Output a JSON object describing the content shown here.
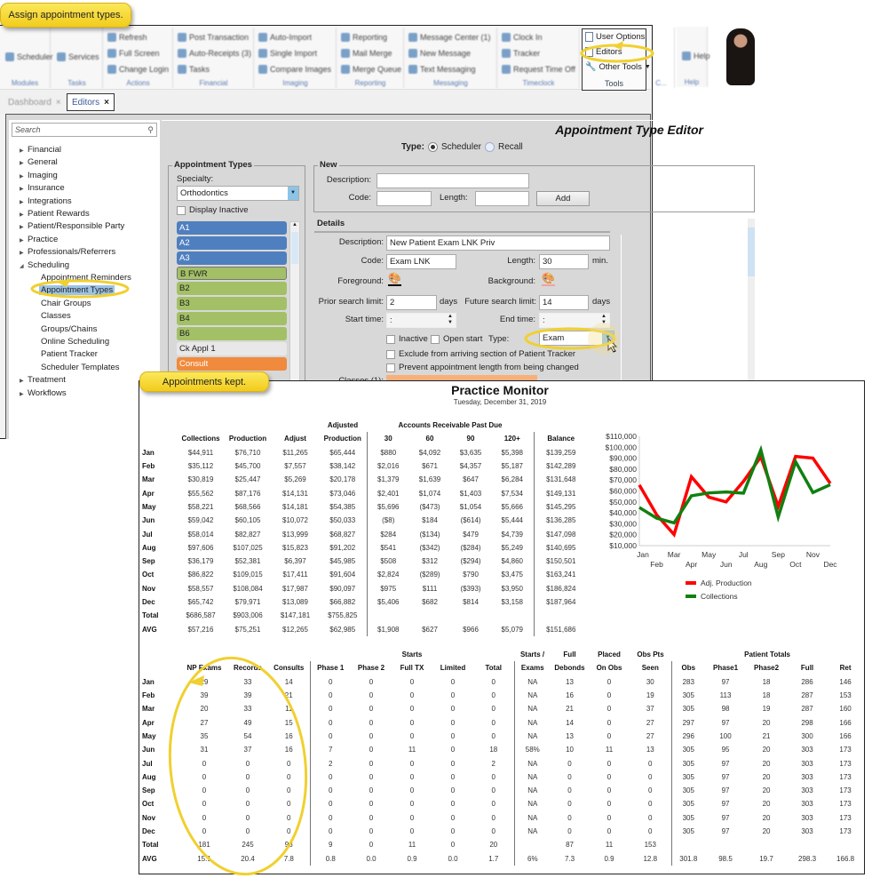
{
  "callouts": {
    "assign": "Assign appointment types.",
    "kept": "Appointments kept."
  },
  "ribbon": {
    "groups": [
      {
        "label": "Modules",
        "items": [
          "Scheduler"
        ]
      },
      {
        "label": "Tasks",
        "items": [
          "Services"
        ]
      },
      {
        "label": "Actions",
        "items": [
          "Refresh",
          "Full Screen",
          "Change Login"
        ]
      },
      {
        "label": "Financial",
        "items": [
          "Post Transaction",
          "Auto-Receipts (3)",
          "Tasks"
        ]
      },
      {
        "label": "Imaging",
        "items": [
          "Auto-Import",
          "Single Import",
          "Compare Images"
        ]
      },
      {
        "label": "Reporting",
        "items": [
          "Reporting",
          "Mail Merge",
          "Merge Queue"
        ]
      },
      {
        "label": "Messaging",
        "items": [
          "Message Center (1)",
          "New Message",
          "Text Messaging"
        ]
      },
      {
        "label": "Timeclock",
        "items": [
          "Clock In",
          "Tracker",
          "Request Time Off"
        ]
      },
      {
        "label": "C...",
        "items": []
      },
      {
        "label": "Help",
        "items": [
          "Help"
        ]
      }
    ],
    "tools": {
      "label": "Tools",
      "user_options": "User Options",
      "editors": "Editors",
      "other_tools": "Other Tools"
    }
  },
  "tabs": [
    {
      "label": "Dashboard",
      "close": "×"
    },
    {
      "label": "Editors",
      "close": "×"
    }
  ],
  "sidebar": {
    "search_placeholder": "Search",
    "tree": [
      "Financial",
      "General",
      "Imaging",
      "Insurance",
      "Integrations",
      "Patient Rewards",
      "Patient/Responsible Party",
      "Practice",
      "Professionals/Referrers",
      "Scheduling"
    ],
    "scheduling_children": [
      "Appointment Reminders",
      "Appointment Types",
      "Chair Groups",
      "Classes",
      "Groups/Chains",
      "Online Scheduling",
      "Patient Tracker",
      "Scheduler Templates"
    ],
    "tree_after": [
      "Treatment",
      "Workflows"
    ],
    "selected": "Appointment Types"
  },
  "editor": {
    "title": "Appointment Type Editor",
    "type_label": "Type:",
    "type_options": [
      "Scheduler",
      "Recall"
    ],
    "type_selected": "Scheduler",
    "appt_types": {
      "legend": "Appointment Types",
      "specialty_label": "Specialty:",
      "specialty": "Orthodontics",
      "display_inactive": "Display Inactive",
      "items": [
        {
          "label": "A1",
          "color": "#4f7fbf"
        },
        {
          "label": "A2",
          "color": "#4f7fbf"
        },
        {
          "label": "A3",
          "color": "#4f7fbf"
        },
        {
          "label": "B FWR",
          "color": "#a3c066"
        },
        {
          "label": "B2",
          "color": "#a3c066"
        },
        {
          "label": "B3",
          "color": "#a3c066"
        },
        {
          "label": "B4",
          "color": "#a3c066"
        },
        {
          "label": "B6",
          "color": "#a3c066"
        },
        {
          "label": "Ck Appl 1",
          "color": "#e8e8e8"
        },
        {
          "label": "Consult",
          "color": "#f08a3c"
        }
      ]
    },
    "new": {
      "legend": "New",
      "description_label": "Description:",
      "description": "",
      "code_label": "Code:",
      "code": "",
      "length_label": "Length:",
      "length": "",
      "add": "Add"
    },
    "details": {
      "legend": "Details",
      "description_label": "Description:",
      "description": "New Patient Exam LNK Priv",
      "code_label": "Code:",
      "code": "Exam LNK",
      "length_label": "Length:",
      "length": "30",
      "length_unit": "min.",
      "foreground_label": "Foreground:",
      "background_label": "Background:",
      "prior_label": "Prior search limit:",
      "prior": "2",
      "prior_unit": "days",
      "future_label": "Future search limit:",
      "future": "14",
      "future_unit": "days",
      "start_label": "Start time:",
      "start": ":",
      "end_label": "End time:",
      "end": ":",
      "inactive": "Inactive",
      "open_start": "Open start",
      "type_label": "Type:",
      "type": "Exam",
      "exclude": "Exclude from arriving section of Patient Tracker",
      "prevent": "Prevent appointment length from being changed",
      "classes_label": "Classes (1):"
    }
  },
  "monitor": {
    "title": "Practice Monitor",
    "date": "Tuesday, December 31, 2019",
    "financial": {
      "group_headers": {
        "adjusted": "Adjusted",
        "ar": "Accounts Receivable Past Due"
      },
      "columns": [
        "",
        "Collections",
        "Production",
        "Adjust",
        "Production",
        "30",
        "60",
        "90",
        "120+",
        "Balance"
      ],
      "rows": [
        [
          "Jan",
          "$44,911",
          "$76,710",
          "$11,265",
          "$65,444",
          "$880",
          "$4,092",
          "$3,635",
          "$5,398",
          "$139,259"
        ],
        [
          "Feb",
          "$35,112",
          "$45,700",
          "$7,557",
          "$38,142",
          "$2,016",
          "$671",
          "$4,357",
          "$5,187",
          "$142,289"
        ],
        [
          "Mar",
          "$30,819",
          "$25,447",
          "$5,269",
          "$20,178",
          "$1,379",
          "$1,639",
          "$647",
          "$6,284",
          "$131,648"
        ],
        [
          "Apr",
          "$55,562",
          "$87,176",
          "$14,131",
          "$73,046",
          "$2,401",
          "$1,074",
          "$1,403",
          "$7,534",
          "$149,131"
        ],
        [
          "May",
          "$58,221",
          "$68,566",
          "$14,181",
          "$54,385",
          "$5,696",
          "($473)",
          "$1,054",
          "$5,666",
          "$145,295"
        ],
        [
          "Jun",
          "$59,042",
          "$60,105",
          "$10,072",
          "$50,033",
          "($8)",
          "$184",
          "($614)",
          "$5,444",
          "$136,285"
        ],
        [
          "Jul",
          "$58,014",
          "$82,827",
          "$13,999",
          "$68,827",
          "$284",
          "($134)",
          "$479",
          "$4,739",
          "$147,098"
        ],
        [
          "Aug",
          "$97,606",
          "$107,025",
          "$15,823",
          "$91,202",
          "$541",
          "($342)",
          "($284)",
          "$5,249",
          "$140,695"
        ],
        [
          "Sep",
          "$36,179",
          "$52,381",
          "$6,397",
          "$45,985",
          "$508",
          "$312",
          "($294)",
          "$4,860",
          "$150,501"
        ],
        [
          "Oct",
          "$86,822",
          "$109,015",
          "$17,411",
          "$91,604",
          "$2,824",
          "($289)",
          "$790",
          "$3,475",
          "$163,241"
        ],
        [
          "Nov",
          "$58,557",
          "$108,084",
          "$17,987",
          "$90,097",
          "$975",
          "$111",
          "($393)",
          "$3,950",
          "$186,824"
        ],
        [
          "Dec",
          "$65,742",
          "$79,971",
          "$13,089",
          "$66,882",
          "$5,406",
          "$682",
          "$814",
          "$3,158",
          "$187,964"
        ],
        [
          "Total",
          "$686,587",
          "$903,006",
          "$147,181",
          "$755,825",
          "",
          "",
          "",
          "",
          ""
        ],
        [
          "AVG",
          "$57,216",
          "$75,251",
          "$12,265",
          "$62,985",
          "$1,908",
          "$627",
          "$966",
          "$5,079",
          "$151,686"
        ]
      ]
    },
    "appointments": {
      "group_headers": {
        "starts": "Starts",
        "starts_exams": "Starts /",
        "full": "Full",
        "placed": "Placed",
        "obs_pts": "Obs Pts",
        "patient_totals": "Patient Totals"
      },
      "columns": [
        "",
        "NP Exams",
        "Records",
        "Consults",
        "Phase 1",
        "Phase 2",
        "Full TX",
        "Limited",
        "Total",
        "Exams",
        "Debonds",
        "On Obs",
        "Seen",
        "Obs",
        "Phase1",
        "Phase2",
        "Full",
        "Ret"
      ],
      "rows": [
        [
          "Jan",
          "29",
          "33",
          "14",
          "0",
          "0",
          "0",
          "0",
          "0",
          "NA",
          "13",
          "0",
          "30",
          "283",
          "97",
          "18",
          "286",
          "146"
        ],
        [
          "Feb",
          "39",
          "39",
          "21",
          "0",
          "0",
          "0",
          "0",
          "0",
          "NA",
          "16",
          "0",
          "19",
          "305",
          "113",
          "18",
          "287",
          "153"
        ],
        [
          "Mar",
          "20",
          "33",
          "11",
          "0",
          "0",
          "0",
          "0",
          "0",
          "NA",
          "21",
          "0",
          "37",
          "305",
          "98",
          "19",
          "287",
          "160"
        ],
        [
          "Apr",
          "27",
          "49",
          "15",
          "0",
          "0",
          "0",
          "0",
          "0",
          "NA",
          "14",
          "0",
          "27",
          "297",
          "97",
          "20",
          "298",
          "166"
        ],
        [
          "May",
          "35",
          "54",
          "16",
          "0",
          "0",
          "0",
          "0",
          "0",
          "NA",
          "13",
          "0",
          "27",
          "296",
          "100",
          "21",
          "300",
          "166"
        ],
        [
          "Jun",
          "31",
          "37",
          "16",
          "7",
          "0",
          "11",
          "0",
          "18",
          "58%",
          "10",
          "11",
          "13",
          "305",
          "95",
          "20",
          "303",
          "173"
        ],
        [
          "Jul",
          "0",
          "0",
          "0",
          "2",
          "0",
          "0",
          "0",
          "2",
          "NA",
          "0",
          "0",
          "0",
          "305",
          "97",
          "20",
          "303",
          "173"
        ],
        [
          "Aug",
          "0",
          "0",
          "0",
          "0",
          "0",
          "0",
          "0",
          "0",
          "NA",
          "0",
          "0",
          "0",
          "305",
          "97",
          "20",
          "303",
          "173"
        ],
        [
          "Sep",
          "0",
          "0",
          "0",
          "0",
          "0",
          "0",
          "0",
          "0",
          "NA",
          "0",
          "0",
          "0",
          "305",
          "97",
          "20",
          "303",
          "173"
        ],
        [
          "Oct",
          "0",
          "0",
          "0",
          "0",
          "0",
          "0",
          "0",
          "0",
          "NA",
          "0",
          "0",
          "0",
          "305",
          "97",
          "20",
          "303",
          "173"
        ],
        [
          "Nov",
          "0",
          "0",
          "0",
          "0",
          "0",
          "0",
          "0",
          "0",
          "NA",
          "0",
          "0",
          "0",
          "305",
          "97",
          "20",
          "303",
          "173"
        ],
        [
          "Dec",
          "0",
          "0",
          "0",
          "0",
          "0",
          "0",
          "0",
          "0",
          "NA",
          "0",
          "0",
          "0",
          "305",
          "97",
          "20",
          "303",
          "173"
        ],
        [
          "Total",
          "181",
          "245",
          "93",
          "9",
          "0",
          "11",
          "0",
          "20",
          "",
          "87",
          "11",
          "153",
          "",
          "",
          "",
          "",
          ""
        ],
        [
          "AVG",
          "15.1",
          "20.4",
          "7.8",
          "0.8",
          "0.0",
          "0.9",
          "0.0",
          "1.7",
          "6%",
          "7.3",
          "0.9",
          "12.8",
          "301.8",
          "98.5",
          "19.7",
          "298.3",
          "166.8"
        ]
      ]
    }
  },
  "chart_data": {
    "type": "line",
    "categories": [
      "Jan",
      "Feb",
      "Mar",
      "Apr",
      "May",
      "Jun",
      "Jul",
      "Aug",
      "Sep",
      "Oct",
      "Nov",
      "Dec"
    ],
    "series": [
      {
        "name": "Adj. Production",
        "color": "#ff0000",
        "values": [
          65444,
          38142,
          20178,
          73046,
          54385,
          50033,
          68827,
          91202,
          45985,
          91604,
          90097,
          66882
        ]
      },
      {
        "name": "Collections",
        "color": "#108010",
        "values": [
          44911,
          35112,
          30819,
          55562,
          58221,
          59042,
          58014,
          97606,
          36179,
          86822,
          58557,
          65742
        ]
      }
    ],
    "y_ticks": [
      "$10,000",
      "$20,000",
      "$30,000",
      "$40,000",
      "$50,000",
      "$60,000",
      "$70,000",
      "$80,000",
      "$90,000",
      "$100,000",
      "$110,000"
    ],
    "ylim": [
      10000,
      110000
    ],
    "legend_position": "bottom",
    "grid": false
  }
}
